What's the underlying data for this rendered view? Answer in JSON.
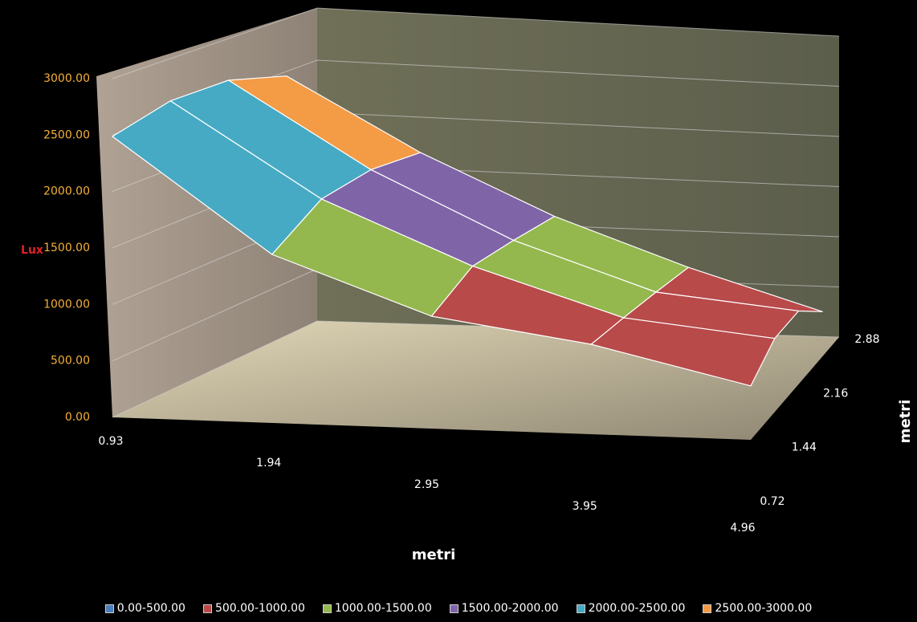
{
  "chart_data": {
    "type": "surface3d",
    "x_label": "metri",
    "depth_label": "metri",
    "z_label": "Lux",
    "categories": [
      "0.93",
      "1.94",
      "2.95",
      "3.95",
      "4.96"
    ],
    "depth_categories": [
      "0.72",
      "1.44",
      "2.16",
      "2.88"
    ],
    "series": [
      {
        "name": "0.72",
        "values": [
          2500,
          1500,
          1000,
          800,
          480
        ]
      },
      {
        "name": "1.44",
        "values": [
          2800,
          1900,
          1300,
          850,
          700
        ]
      },
      {
        "name": "2.16",
        "values": [
          3000,
          2100,
          1400,
          900,
          750
        ]
      },
      {
        "name": "2.88",
        "values": [
          3050,
          2200,
          1500,
          950,
          480
        ]
      }
    ],
    "zlim": [
      0,
      3000
    ],
    "zticks": [
      {
        "value": 0,
        "label": "0.00"
      },
      {
        "value": 500,
        "label": "500.00"
      },
      {
        "value": 1000,
        "label": "1000.00"
      },
      {
        "value": 1500,
        "label": "1500.00"
      },
      {
        "value": 2000,
        "label": "2000.00"
      },
      {
        "value": 2500,
        "label": "2500.00"
      },
      {
        "value": 3000,
        "label": "3000.00"
      }
    ],
    "grid": true,
    "bands": [
      {
        "label": "0.00-500.00",
        "from": 0,
        "to": 500,
        "color": "#4a7ebb"
      },
      {
        "label": "500.00-1000.00",
        "from": 500,
        "to": 1000,
        "color": "#b84a4a"
      },
      {
        "label": "1000.00-1500.00",
        "from": 1000,
        "to": 1500,
        "color": "#94b84e"
      },
      {
        "label": "1500.00-2000.00",
        "from": 1500,
        "to": 2000,
        "color": "#8064a8"
      },
      {
        "label": "2000.00-2500.00",
        "from": 2000,
        "to": 2500,
        "color": "#46aac4"
      },
      {
        "label": "2500.00-3000.00",
        "from": 2500,
        "to": 3000,
        "color": "#f49b46"
      }
    ]
  }
}
